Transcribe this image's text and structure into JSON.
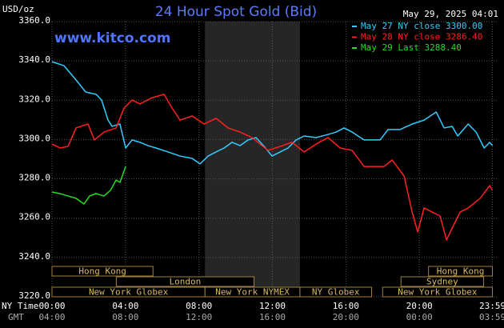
{
  "chart_data": {
    "type": "line",
    "title": "24 Hour Spot Gold (Bid)",
    "site": "www.kitco.com",
    "timestamp": "May 29, 2025 04:01",
    "y_axis_label": "USD/oz",
    "x_axis_label": "NY Time",
    "x2_axis_label": "GMT",
    "grid": true,
    "legend": "top-right",
    "xlim": [
      0,
      24
    ],
    "ylim": [
      3220,
      3360
    ],
    "yticks": [
      {
        "value": 3220,
        "label": "3220.0"
      },
      {
        "value": 3240,
        "label": "3240.0"
      },
      {
        "value": 3260,
        "label": "3260.0"
      },
      {
        "value": 3280,
        "label": "3280.0"
      },
      {
        "value": 3300,
        "label": "3300.0"
      },
      {
        "value": 3320,
        "label": "3320.0"
      },
      {
        "value": 3340,
        "label": "3340.0"
      },
      {
        "value": 3360,
        "label": "3360.0"
      }
    ],
    "xticks": [
      {
        "value": 0,
        "label": "00:00"
      },
      {
        "value": 4,
        "label": "04:00"
      },
      {
        "value": 8,
        "label": "08:00"
      },
      {
        "value": 12,
        "label": "12:00"
      },
      {
        "value": 16,
        "label": "16:00"
      },
      {
        "value": 20,
        "label": "20:00"
      },
      {
        "value": 23.98,
        "label": "23:59"
      }
    ],
    "x2ticks": [
      {
        "value": 0,
        "label": "04:00"
      },
      {
        "value": 4,
        "label": "08:00"
      },
      {
        "value": 8,
        "label": "12:00"
      },
      {
        "value": 12,
        "label": "16:00"
      },
      {
        "value": 16,
        "label": "20:00"
      },
      {
        "value": 20,
        "label": "00:00"
      },
      {
        "value": 23.98,
        "label": "03:59"
      }
    ],
    "series": [
      {
        "name": "May 27 NY close 3300.00",
        "color": "#33ccff",
        "x": [
          0,
          0.65,
          1.31,
          1.83,
          2.4,
          2.7,
          3.05,
          3.27,
          3.7,
          4.01,
          4.36,
          4.79,
          5.23,
          5.66,
          6.32,
          6.97,
          7.63,
          8.06,
          8.5,
          8.93,
          9.37,
          9.8,
          10.24,
          10.68,
          11.11,
          11.55,
          11.98,
          12.42,
          12.85,
          13.29,
          13.73,
          14.38,
          15.03,
          15.47,
          15.9,
          16.34,
          16.99,
          17.86,
          18.3,
          18.95,
          19.61,
          20.26,
          20.92,
          21.35,
          21.79,
          22.09,
          22.66,
          23.09,
          23.53,
          23.83,
          23.98
        ],
        "values": [
          3339.6,
          3337.6,
          3330.3,
          3324.2,
          3323,
          3320.1,
          3309.9,
          3306.7,
          3307.9,
          3295.7,
          3299.8,
          3298.6,
          3296.9,
          3295.7,
          3293.7,
          3291.6,
          3290.4,
          3287.6,
          3291.6,
          3293.7,
          3295.7,
          3298.6,
          3296.9,
          3299.8,
          3301,
          3296.5,
          3291.6,
          3293.7,
          3295.7,
          3299.8,
          3301.8,
          3301,
          3302.6,
          3303.8,
          3305.9,
          3303.8,
          3299.8,
          3299.8,
          3305.1,
          3305.1,
          3307.9,
          3309.9,
          3314,
          3305.9,
          3306.7,
          3301.8,
          3307.9,
          3303.8,
          3295.7,
          3298.6,
          3296.9
        ]
      },
      {
        "name": "May 28 NY close 3286.40",
        "color": "#ff2020",
        "x": [
          0,
          0.44,
          0.87,
          1.31,
          1.96,
          2.31,
          2.83,
          3.49,
          3.92,
          4.36,
          4.79,
          5.45,
          6.1,
          6.54,
          6.97,
          7.63,
          8.28,
          8.93,
          9.59,
          10.24,
          10.89,
          11.33,
          11.76,
          12.42,
          13.07,
          13.73,
          14.38,
          15.03,
          15.69,
          16.34,
          16.99,
          18.08,
          18.52,
          19.17,
          19.61,
          19.91,
          20.26,
          20.7,
          21.13,
          21.48,
          21.79,
          22.22,
          22.66,
          23.31,
          23.83,
          23.98
        ],
        "values": [
          3297.7,
          3295.7,
          3296.5,
          3305.9,
          3307.9,
          3299.8,
          3303.8,
          3305.9,
          3316,
          3320.1,
          3318.1,
          3321.3,
          3323,
          3316,
          3309.9,
          3312,
          3307.9,
          3310.8,
          3305.9,
          3303.8,
          3301,
          3297.7,
          3294.5,
          3296.5,
          3298.6,
          3293.7,
          3297.7,
          3301,
          3295.7,
          3294.5,
          3286.3,
          3286.3,
          3289.6,
          3281.4,
          3263.1,
          3253,
          3265.2,
          3263.1,
          3261.1,
          3248.9,
          3255,
          3263.1,
          3265.2,
          3270.1,
          3276.6,
          3274.1
        ]
      },
      {
        "name": "May 29 Last 3288.40",
        "color": "#22dd22",
        "x": [
          0,
          0.44,
          0.87,
          1.31,
          1.74,
          2.05,
          2.4,
          2.83,
          3.18,
          3.49,
          3.7,
          4.01
        ],
        "values": [
          3273.3,
          3272.5,
          3271.3,
          3270.1,
          3267.2,
          3271.3,
          3272.5,
          3271.3,
          3274.1,
          3279.4,
          3278.2,
          3286.3
        ]
      }
    ],
    "session_rows": [
      [
        {
          "label": "Hong Kong",
          "start": 0,
          "end": 5.5
        },
        {
          "label": "Hong Kong",
          "start": 20.5,
          "end": 23.98
        }
      ],
      [
        {
          "label": "London",
          "start": 3.5,
          "end": 11
        },
        {
          "label": "Sydney",
          "start": 19,
          "end": 23.5
        }
      ],
      [
        {
          "label": "New York Globex",
          "start": 0,
          "end": 8.33
        },
        {
          "label": "New York NYMEX",
          "start": 8.33,
          "end": 13.5,
          "shaded": true
        },
        {
          "label": "NY Globex",
          "start": 13.5,
          "end": 17.4
        },
        {
          "label": "New York Globex",
          "start": 18,
          "end": 23.98
        }
      ]
    ]
  }
}
